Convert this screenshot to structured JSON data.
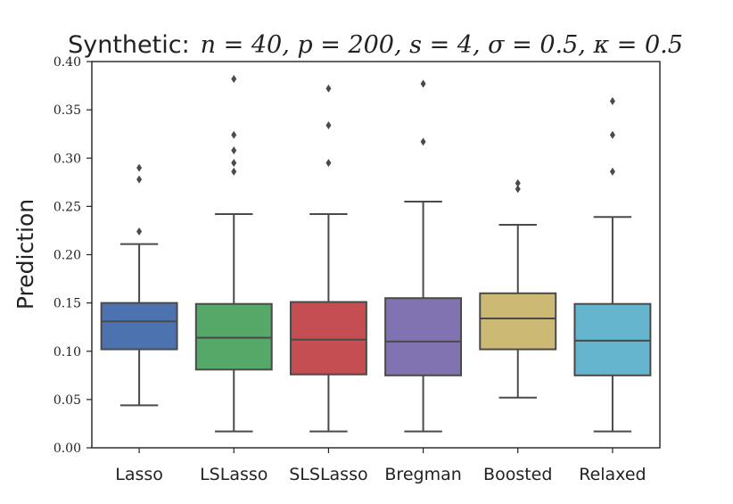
{
  "chart_data": {
    "type": "box",
    "title_prefix": "Synthetic:",
    "title_math": "n = 40, p = 200, s = 4, σ = 0.5, κ = 0.5",
    "xlabel": "",
    "ylabel": "Prediction",
    "ylim": [
      0.0,
      0.4
    ],
    "yticks": [
      "0.00",
      "0.05",
      "0.10",
      "0.15",
      "0.20",
      "0.25",
      "0.30",
      "0.35",
      "0.40"
    ],
    "grid": false,
    "categories": [
      "Lasso",
      "LSLasso",
      "SLSLasso",
      "Bregman",
      "Boosted",
      "Relaxed"
    ],
    "colors": [
      "#4C72B0",
      "#55A868",
      "#C44E52",
      "#8172B2",
      "#CCB974",
      "#64B5CD"
    ],
    "boxes": [
      {
        "name": "Lasso",
        "whisker_low": 0.044,
        "q1": 0.102,
        "median": 0.131,
        "q3": 0.15,
        "whisker_high": 0.211,
        "outliers": [
          0.224,
          0.278,
          0.29
        ]
      },
      {
        "name": "LSLasso",
        "whisker_low": 0.017,
        "q1": 0.081,
        "median": 0.114,
        "q3": 0.149,
        "whisker_high": 0.242,
        "outliers": [
          0.286,
          0.295,
          0.308,
          0.324,
          0.382
        ]
      },
      {
        "name": "SLSLasso",
        "whisker_low": 0.017,
        "q1": 0.076,
        "median": 0.112,
        "q3": 0.151,
        "whisker_high": 0.242,
        "outliers": [
          0.295,
          0.334,
          0.372
        ]
      },
      {
        "name": "Bregman",
        "whisker_low": 0.017,
        "q1": 0.075,
        "median": 0.11,
        "q3": 0.155,
        "whisker_high": 0.255,
        "outliers": [
          0.317,
          0.377
        ]
      },
      {
        "name": "Boosted",
        "whisker_low": 0.052,
        "q1": 0.102,
        "median": 0.134,
        "q3": 0.16,
        "whisker_high": 0.231,
        "outliers": [
          0.268,
          0.274
        ]
      },
      {
        "name": "Relaxed",
        "whisker_low": 0.017,
        "q1": 0.075,
        "median": 0.111,
        "q3": 0.149,
        "whisker_high": 0.239,
        "outliers": [
          0.286,
          0.324,
          0.359
        ]
      }
    ]
  }
}
